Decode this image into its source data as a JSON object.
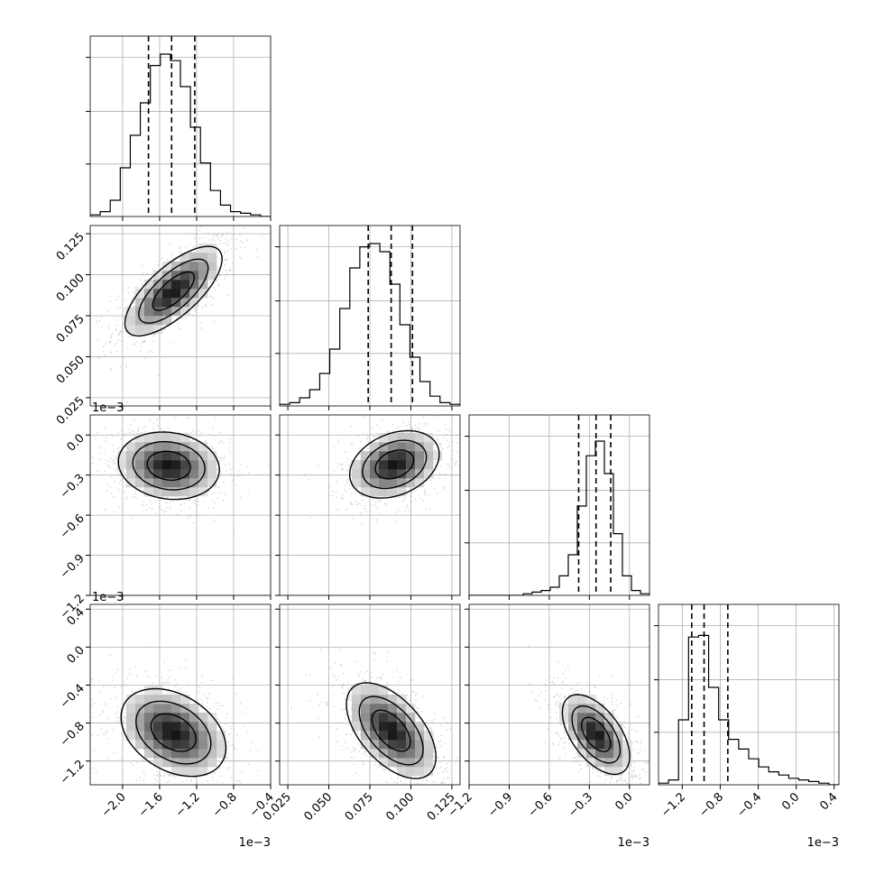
{
  "chart_data": {
    "type": "corner",
    "parameters": [
      {
        "range": [
          -2.35,
          -0.4
        ],
        "ticks": [
          -2.0,
          -1.6,
          -1.2,
          -0.8,
          -0.4
        ],
        "tick_labels": [
          "−2.0",
          "−1.6",
          "−1.2",
          "−0.8",
          "−0.4"
        ],
        "offset_label": "1e−3",
        "quantiles": [
          -1.72,
          -1.47,
          -1.22
        ],
        "hist_counts": [
          0.01,
          0.03,
          0.1,
          0.3,
          0.5,
          0.7,
          0.93,
          1.0,
          0.96,
          0.8,
          0.55,
          0.33,
          0.16,
          0.07,
          0.03,
          0.02,
          0.01,
          0.0
        ]
      },
      {
        "range": [
          0.02,
          0.13
        ],
        "ticks": [
          0.025,
          0.05,
          0.075,
          0.1,
          0.125
        ],
        "tick_labels": [
          "0.025",
          "0.050",
          "0.075",
          "0.100",
          "0.125"
        ],
        "offset_label": "",
        "quantiles": [
          0.074,
          0.088,
          0.101
        ],
        "hist_counts": [
          0.01,
          0.02,
          0.05,
          0.1,
          0.2,
          0.35,
          0.6,
          0.85,
          0.98,
          1.0,
          0.95,
          0.75,
          0.5,
          0.3,
          0.15,
          0.06,
          0.02,
          0.01
        ]
      },
      {
        "range": [
          -1.2,
          0.15
        ],
        "ticks": [
          -1.2,
          -0.9,
          -0.6,
          -0.3,
          0.0
        ],
        "tick_labels": [
          "−1.2",
          "−0.9",
          "−0.6",
          "−0.3",
          "0.0"
        ],
        "offset_label": "1e−3",
        "quantiles": [
          -0.38,
          -0.25,
          -0.14
        ],
        "hist_counts": [
          0.0,
          0.0,
          0.0,
          0.0,
          0.0,
          0.0,
          0.01,
          0.02,
          0.03,
          0.05,
          0.12,
          0.25,
          0.55,
          0.86,
          0.95,
          0.75,
          0.38,
          0.12,
          0.03,
          0.01
        ]
      },
      {
        "range": [
          -1.45,
          0.45
        ],
        "ticks": [
          -1.2,
          -0.8,
          -0.4,
          0.0,
          0.4
        ],
        "tick_labels": [
          "−1.2",
          "−0.8",
          "−0.4",
          "0.0",
          "0.4"
        ],
        "offset_label": "1e−3",
        "quantiles": [
          -1.1,
          -0.97,
          -0.72
        ],
        "hist_counts": [
          0.01,
          0.03,
          0.4,
          0.91,
          0.92,
          0.6,
          0.4,
          0.28,
          0.22,
          0.16,
          0.11,
          0.08,
          0.06,
          0.04,
          0.03,
          0.02,
          0.01,
          0.0
        ]
      }
    ],
    "pairs": [
      {
        "x": 0,
        "y": 1,
        "mean": [
          -1.45,
          0.09
        ],
        "sd": [
          0.25,
          0.013
        ],
        "rho": 0.72,
        "peak": [
          -1.5,
          0.088
        ]
      },
      {
        "x": 0,
        "y": 2,
        "mean": [
          -1.5,
          -0.23
        ],
        "sd": [
          0.26,
          0.12
        ],
        "rho": -0.12,
        "peak": [
          -1.45,
          -0.2
        ]
      },
      {
        "x": 1,
        "y": 2,
        "mean": [
          0.09,
          -0.22
        ],
        "sd": [
          0.013,
          0.12
        ],
        "rho": 0.3,
        "peak": [
          0.09,
          -0.22
        ]
      },
      {
        "x": 0,
        "y": 3,
        "mean": [
          -1.45,
          -0.9
        ],
        "sd": [
          0.27,
          0.22
        ],
        "rho": -0.35,
        "peak": [
          -1.5,
          -1.05
        ]
      },
      {
        "x": 1,
        "y": 3,
        "mean": [
          0.088,
          -0.88
        ],
        "sd": [
          0.013,
          0.24
        ],
        "rho": -0.55,
        "peak": [
          0.092,
          -1.05
        ]
      },
      {
        "x": 2,
        "y": 3,
        "mean": [
          -0.25,
          -0.92
        ],
        "sd": [
          0.12,
          0.2
        ],
        "rho": -0.55,
        "peak": [
          -0.25,
          -1.0
        ]
      }
    ],
    "grid": true,
    "legend": "none"
  }
}
